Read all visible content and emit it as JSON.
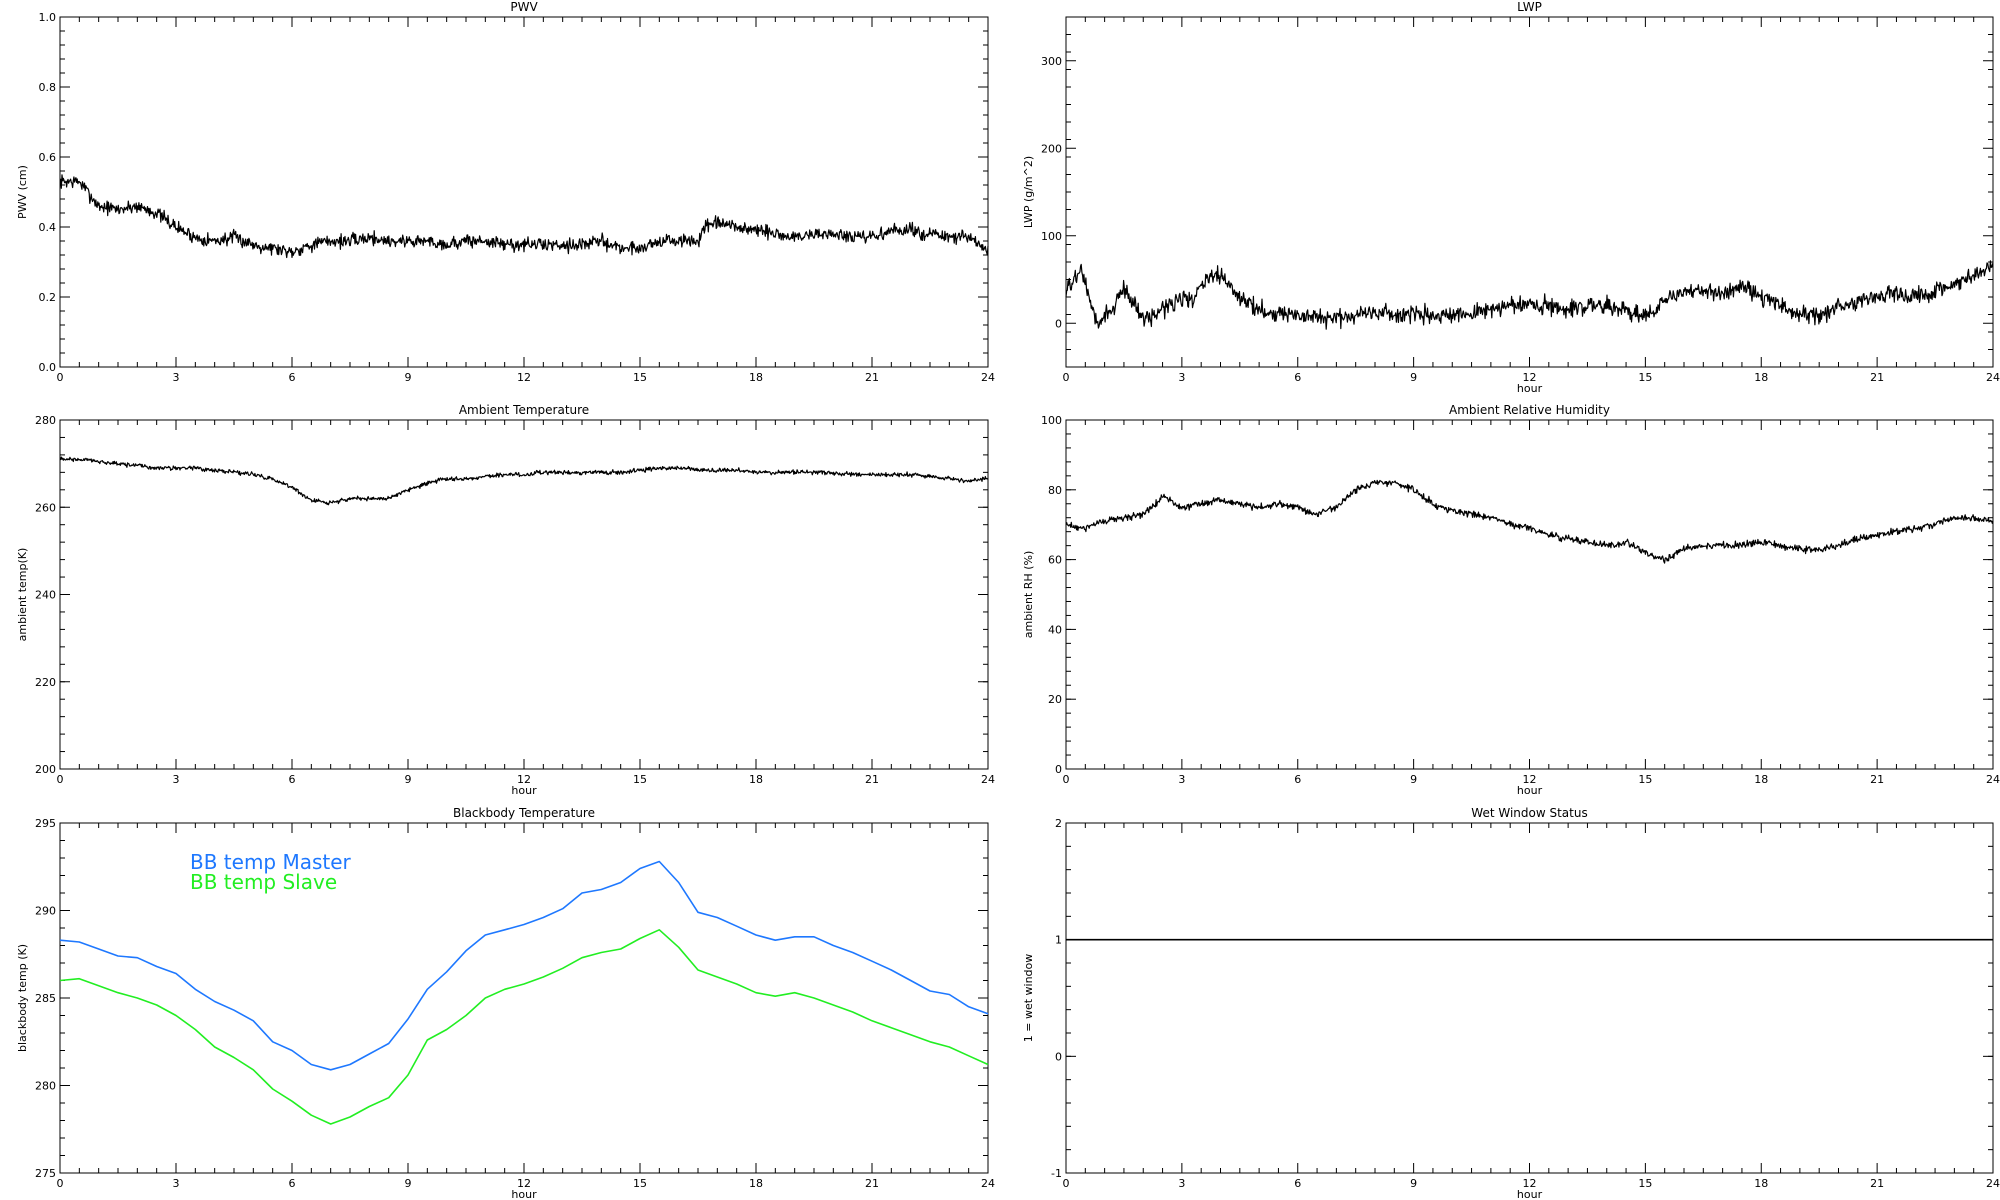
{
  "chart_data": [
    {
      "type": "line",
      "title": "PWV",
      "xlabel": "",
      "ylabel": "PWV (cm)",
      "xlim": [
        0,
        24
      ],
      "ylim": [
        0,
        1.0
      ],
      "xticks": [
        "0",
        "3",
        "6",
        "9",
        "12",
        "15",
        "18",
        "21",
        "24"
      ],
      "yticks": [
        "0.0",
        "0.2",
        "0.4",
        "0.6",
        "0.8",
        "1.0"
      ],
      "series": [
        {
          "color": "#000000",
          "noise": 0.012,
          "x": [
            0,
            0.5,
            1,
            1.5,
            2,
            2.5,
            3,
            3.5,
            4,
            4.5,
            5,
            5.5,
            6,
            6.5,
            7,
            7.5,
            8,
            8.5,
            9,
            9.5,
            10,
            10.5,
            11,
            11.5,
            12,
            12.5,
            13,
            13.5,
            14,
            14.5,
            15,
            15.5,
            16,
            16.5,
            16.7,
            17,
            17.5,
            18,
            18.5,
            19,
            19.5,
            20,
            20.5,
            21,
            21.5,
            22,
            22.5,
            23,
            23.5,
            24
          ],
          "y": [
            0.53,
            0.53,
            0.46,
            0.45,
            0.46,
            0.44,
            0.4,
            0.37,
            0.36,
            0.37,
            0.35,
            0.34,
            0.33,
            0.35,
            0.36,
            0.36,
            0.37,
            0.36,
            0.36,
            0.36,
            0.35,
            0.36,
            0.36,
            0.35,
            0.35,
            0.35,
            0.35,
            0.35,
            0.36,
            0.34,
            0.34,
            0.36,
            0.36,
            0.36,
            0.4,
            0.41,
            0.4,
            0.39,
            0.38,
            0.37,
            0.38,
            0.38,
            0.37,
            0.37,
            0.39,
            0.39,
            0.38,
            0.37,
            0.37,
            0.33
          ]
        }
      ]
    },
    {
      "type": "line",
      "title": "LWP",
      "xlabel": "hour",
      "ylabel": "LWP (g/m^2)",
      "xlim": [
        0,
        24
      ],
      "ylim": [
        -50,
        350
      ],
      "xticks": [
        "0",
        "3",
        "6",
        "9",
        "12",
        "15",
        "18",
        "21",
        "24"
      ],
      "yticks": [
        "0",
        "100",
        "200",
        "300"
      ],
      "series": [
        {
          "color": "#000000",
          "noise": 6,
          "x": [
            0,
            0.2,
            0.4,
            0.6,
            0.8,
            1,
            1.2,
            1.5,
            1.8,
            2,
            2.3,
            2.6,
            3,
            3.3,
            3.6,
            4,
            4.5,
            5,
            5.5,
            6,
            6.5,
            7,
            7.5,
            8,
            8.5,
            9,
            9.5,
            10,
            10.5,
            11,
            11.5,
            12,
            12.5,
            13,
            13.5,
            14,
            14.5,
            15,
            15.2,
            15.5,
            16,
            16.5,
            17,
            17.5,
            18,
            18.5,
            19,
            19.5,
            20,
            20.5,
            21,
            21.5,
            22,
            22.5,
            23,
            23.5,
            24
          ],
          "y": [
            35,
            50,
            60,
            30,
            -5,
            10,
            15,
            40,
            20,
            5,
            10,
            20,
            30,
            25,
            50,
            55,
            30,
            15,
            12,
            8,
            5,
            6,
            10,
            14,
            10,
            10,
            8,
            6,
            12,
            16,
            20,
            22,
            20,
            18,
            20,
            22,
            14,
            10,
            10,
            30,
            35,
            38,
            35,
            42,
            30,
            20,
            10,
            8,
            20,
            25,
            30,
            35,
            30,
            35,
            45,
            55,
            70
          ]
        }
      ]
    },
    {
      "type": "line",
      "title": "Ambient Temperature",
      "xlabel": "hour",
      "ylabel": "ambient temp(K)",
      "xlim": [
        0,
        24
      ],
      "ylim": [
        200,
        280
      ],
      "xticks": [
        "0",
        "3",
        "6",
        "9",
        "12",
        "15",
        "18",
        "21",
        "24"
      ],
      "yticks": [
        "200",
        "220",
        "240",
        "260",
        "280"
      ],
      "series": [
        {
          "color": "#000000",
          "noise": 0.3,
          "x": [
            0,
            0.5,
            1,
            1.5,
            2,
            2.5,
            3,
            3.5,
            4,
            4.5,
            5,
            5.5,
            6,
            6.5,
            7,
            7.5,
            8,
            8.5,
            9,
            9.5,
            10,
            10.5,
            11,
            11.5,
            12,
            12.5,
            13,
            13.5,
            14,
            14.5,
            15,
            15.5,
            16,
            16.5,
            17,
            17.5,
            18,
            18.5,
            19,
            19.5,
            20,
            20.5,
            21,
            21.5,
            22,
            22.5,
            23,
            23.5,
            24
          ],
          "y": [
            271,
            271,
            270.5,
            270,
            269.5,
            269,
            269,
            269,
            268.5,
            268,
            267.5,
            266.5,
            264.5,
            261.5,
            261,
            262,
            262,
            262,
            264,
            265.5,
            266.5,
            266.5,
            267,
            267.5,
            267.5,
            268,
            268,
            268,
            268,
            268,
            268.5,
            269,
            269,
            268.5,
            268.5,
            268.5,
            268,
            268,
            268,
            268,
            267.8,
            267.5,
            267.5,
            267.5,
            267.5,
            267,
            266.5,
            266,
            266.5
          ]
        }
      ]
    },
    {
      "type": "line",
      "title": "Ambient Relative Humidity",
      "xlabel": "hour",
      "ylabel": "ambient RH (%)",
      "xlim": [
        0,
        24
      ],
      "ylim": [
        0,
        100
      ],
      "xticks": [
        "0",
        "3",
        "6",
        "9",
        "12",
        "15",
        "18",
        "21",
        "24"
      ],
      "yticks": [
        "0",
        "20",
        "40",
        "60",
        "80",
        "100"
      ],
      "series": [
        {
          "color": "#000000",
          "noise": 0.6,
          "x": [
            0,
            0.5,
            1,
            1.5,
            2,
            2.5,
            3,
            3.5,
            4,
            4.5,
            5,
            5.5,
            6,
            6.5,
            7,
            7.5,
            8,
            8.5,
            9,
            9.5,
            10,
            10.5,
            11,
            11.5,
            12,
            12.5,
            13,
            13.5,
            14,
            14.5,
            15,
            15.5,
            16,
            16.5,
            17,
            17.5,
            18,
            18.5,
            19,
            19.5,
            20,
            20.5,
            21,
            21.5,
            22,
            22.5,
            23,
            23.5,
            24
          ],
          "y": [
            70,
            69,
            71,
            72,
            73,
            78,
            75,
            76,
            77,
            76,
            75,
            76,
            75,
            73,
            75,
            80,
            82,
            82,
            80,
            76,
            74,
            73,
            72,
            70,
            69,
            67,
            66,
            65,
            64,
            65,
            62,
            60,
            63,
            64,
            64,
            64,
            65,
            64,
            63,
            63,
            64,
            66,
            67,
            68,
            69,
            70,
            72,
            72,
            71
          ]
        }
      ]
    },
    {
      "type": "line",
      "title": "Blackbody Temperature",
      "xlabel": "hour",
      "ylabel": "blackbody temp (K)",
      "xlim": [
        0,
        24
      ],
      "ylim": [
        275,
        295
      ],
      "xticks": [
        "0",
        "3",
        "6",
        "9",
        "12",
        "15",
        "18",
        "21",
        "24"
      ],
      "yticks": [
        "275",
        "280",
        "285",
        "290",
        "295"
      ],
      "legend": "top-left",
      "series": [
        {
          "name": "BB temp Master",
          "color": "#1e78ff",
          "noise": 0,
          "x": [
            0,
            0.5,
            1,
            1.5,
            2,
            2.5,
            3,
            3.5,
            4,
            4.5,
            5,
            5.5,
            6,
            6.5,
            7,
            7.5,
            8,
            8.5,
            9,
            9.5,
            10,
            10.5,
            11,
            11.5,
            12,
            12.5,
            13,
            13.5,
            14,
            14.5,
            15,
            15.5,
            16,
            16.5,
            17,
            17.5,
            18,
            18.5,
            19,
            19.5,
            20,
            20.5,
            21,
            21.5,
            22,
            22.5,
            23,
            23.5,
            24
          ],
          "y": [
            288.3,
            288.2,
            287.8,
            287.4,
            287.3,
            286.8,
            286.4,
            285.5,
            284.8,
            284.3,
            283.7,
            282.5,
            282.0,
            281.2,
            280.9,
            281.2,
            281.8,
            282.4,
            283.8,
            285.5,
            286.5,
            287.7,
            288.6,
            288.9,
            289.2,
            289.6,
            290.1,
            291.0,
            291.2,
            291.6,
            292.4,
            292.8,
            291.6,
            289.9,
            289.6,
            289.1,
            288.6,
            288.3,
            288.5,
            288.5,
            288.0,
            287.6,
            287.1,
            286.6,
            286.0,
            285.4,
            285.2,
            284.5,
            284.1
          ]
        },
        {
          "name": "BB temp Slave",
          "color": "#22ee22",
          "noise": 0,
          "x": [
            0,
            0.5,
            1,
            1.5,
            2,
            2.5,
            3,
            3.5,
            4,
            4.5,
            5,
            5.5,
            6,
            6.5,
            7,
            7.5,
            8,
            8.5,
            9,
            9.5,
            10,
            10.5,
            11,
            11.5,
            12,
            12.5,
            13,
            13.5,
            14,
            14.5,
            15,
            15.5,
            16,
            16.5,
            17,
            17.5,
            18,
            18.5,
            19,
            19.5,
            20,
            20.5,
            21,
            21.5,
            22,
            22.5,
            23,
            23.5,
            24
          ],
          "y": [
            286.0,
            286.1,
            285.7,
            285.3,
            285.0,
            284.6,
            284.0,
            283.2,
            282.2,
            281.6,
            280.9,
            279.8,
            279.1,
            278.3,
            277.8,
            278.2,
            278.8,
            279.3,
            280.6,
            282.6,
            283.2,
            284.0,
            285.0,
            285.5,
            285.8,
            286.2,
            286.7,
            287.3,
            287.6,
            287.8,
            288.4,
            288.9,
            287.9,
            286.6,
            286.2,
            285.8,
            285.3,
            285.1,
            285.3,
            285.0,
            284.6,
            284.2,
            283.7,
            283.3,
            282.9,
            282.5,
            282.2,
            281.7,
            281.2
          ]
        }
      ]
    },
    {
      "type": "line",
      "title": "Wet Window Status",
      "xlabel": "hour",
      "ylabel": "1 = wet window",
      "xlim": [
        0,
        24
      ],
      "ylim": [
        -1,
        2
      ],
      "xticks": [
        "0",
        "3",
        "6",
        "9",
        "12",
        "15",
        "18",
        "21",
        "24"
      ],
      "yticks": [
        "-1",
        "0",
        "1",
        "2"
      ],
      "series": [
        {
          "color": "#000000",
          "noise": 0,
          "x": [
            0,
            24
          ],
          "y": [
            1,
            1
          ]
        }
      ]
    }
  ]
}
